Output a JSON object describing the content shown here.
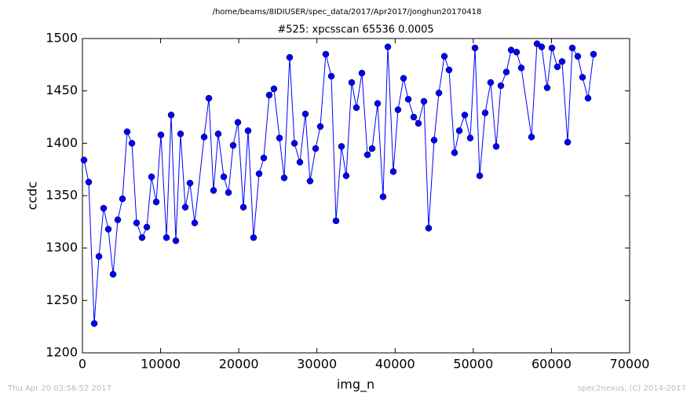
{
  "chart_data": {
    "type": "line",
    "suptitle": "/home/beams/8IDIUSER/spec_data/2017/Apr2017/jonghun20170418",
    "title": "#525: xpcsscan 65536 0.0005",
    "x_label": "img_n",
    "y_label": "ccdc",
    "footer_left": "Thu Apr 20 03:56:52 2017",
    "footer_right": "spec2nexus, (C) 2014-2017",
    "xlim": [
      0,
      70000
    ],
    "xticks": [
      0,
      10000,
      20000,
      30000,
      40000,
      50000,
      60000,
      70000
    ],
    "ylim": [
      1200,
      1500
    ],
    "yticks": [
      1200,
      1250,
      1300,
      1350,
      1400,
      1450,
      1500
    ],
    "grid": false,
    "x": [
      200,
      800,
      1510,
      2110,
      2710,
      3310,
      3920,
      4520,
      5120,
      5720,
      6330,
      6930,
      7630,
      8240,
      8840,
      9440,
      10040,
      10750,
      11350,
      11950,
      12550,
      13160,
      13760,
      14360,
      15570,
      16170,
      16770,
      17370,
      18080,
      18680,
      19280,
      19890,
      20590,
      21190,
      21890,
      22600,
      23200,
      23900,
      24500,
      25210,
      25810,
      26510,
      27120,
      27820,
      28520,
      29120,
      29830,
      30430,
      31130,
      31840,
      32440,
      33140,
      33740,
      34450,
      35050,
      35750,
      36460,
      37060,
      37760,
      38460,
      39070,
      39770,
      40370,
      41080,
      41680,
      42380,
      42980,
      43690,
      44290,
      44990,
      45600,
      46300,
      46900,
      47600,
      48210,
      48910,
      49610,
      50220,
      50820,
      51520,
      52220,
      52930,
      53530,
      54230,
      54840,
      55540,
      56140,
      57450,
      58150,
      58750,
      59450,
      60060,
      60760,
      61360,
      62070,
      62670,
      63370,
      63970,
      64680,
      65380
    ],
    "series": [
      {
        "name": "ccdc",
        "color": "#0000ff",
        "values": [
          1384,
          1363,
          1228,
          1292,
          1338,
          1318,
          1275,
          1327,
          1347,
          1411,
          1400,
          1324,
          1310,
          1320,
          1368,
          1344,
          1408,
          1310,
          1427,
          1307,
          1409,
          1339,
          1362,
          1324,
          1406,
          1443,
          1355,
          1409,
          1368,
          1353,
          1398,
          1420,
          1339,
          1412,
          1310,
          1371,
          1386,
          1446,
          1452,
          1405,
          1367,
          1482,
          1400,
          1382,
          1428,
          1364,
          1395,
          1416,
          1485,
          1464,
          1326,
          1397,
          1369,
          1458,
          1434,
          1467,
          1389,
          1395,
          1438,
          1349,
          1492,
          1373,
          1432,
          1462,
          1442,
          1425,
          1419,
          1440,
          1319,
          1403,
          1448,
          1483,
          1470,
          1391,
          1412,
          1427,
          1405,
          1491,
          1369,
          1429,
          1458,
          1397,
          1455,
          1468,
          1489,
          1487,
          1472,
          1406,
          1495,
          1492,
          1453,
          1491,
          1473,
          1478,
          1401,
          1491,
          1483,
          1463,
          1443,
          1485
        ]
      }
    ]
  }
}
